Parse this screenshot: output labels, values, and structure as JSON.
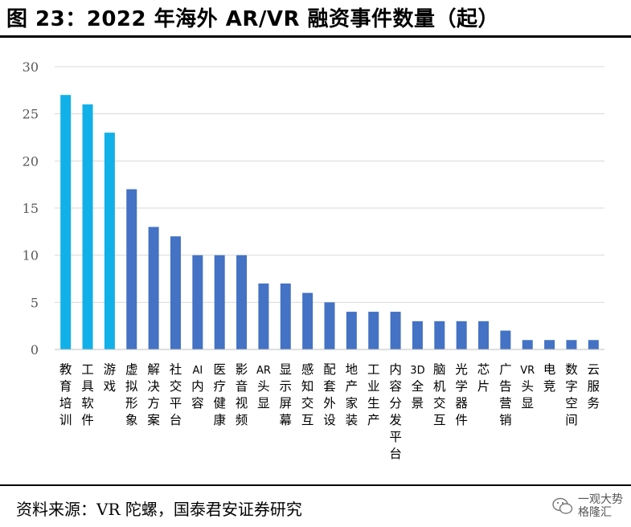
{
  "header": {
    "title": "图 23：2022 年海外 AR/VR 融资事件数量（起）"
  },
  "footer": {
    "source": "资料来源：VR 陀螺，国泰君安证券研究",
    "watermark_line1": "一观大势",
    "watermark_line2": "格隆汇"
  },
  "colors": {
    "highlight": "#12B0E8",
    "bar": "#4472C4",
    "grid": "#D9D9D9"
  },
  "chart_data": {
    "type": "bar",
    "title": "2022 年海外 AR/VR 融资事件数量（起）",
    "xlabel": "",
    "ylabel": "",
    "ylim": [
      0,
      30
    ],
    "yticks": [
      0,
      5,
      10,
      15,
      20,
      25,
      30
    ],
    "grid": true,
    "categories": [
      "教育培训",
      "工具软件",
      "游戏",
      "虚拟形象",
      "解决方案",
      "社交平台",
      "AI内容",
      "医疗健康",
      "影音视频",
      "AR头显",
      "显示屏幕",
      "感知交互",
      "配套外设",
      "地产家装",
      "工业生产",
      "内容分发平台",
      "3D全景",
      "脑机交互",
      "光学器件",
      "芯片",
      "广告营销",
      "VR头显",
      "电竞",
      "数字空间",
      "云服务"
    ],
    "values": [
      27,
      26,
      23,
      17,
      13,
      12,
      10,
      10,
      10,
      7,
      7,
      6,
      5,
      4,
      4,
      4,
      3,
      3,
      3,
      3,
      2,
      1,
      1,
      1,
      1
    ],
    "highlight_count": 3
  }
}
